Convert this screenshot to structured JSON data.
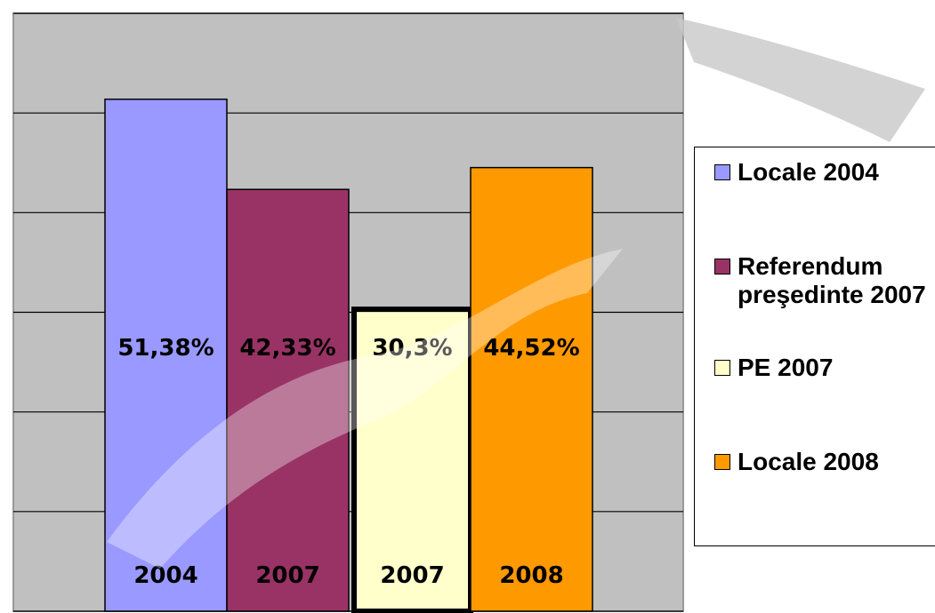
{
  "chart_data": {
    "type": "bar",
    "categories": [
      "2004",
      "2007",
      "2007",
      "2008"
    ],
    "values": [
      51.38,
      42.33,
      30.3,
      44.52
    ],
    "value_labels": [
      "51,38%",
      "42,33%",
      "30,3%",
      "44,52%"
    ],
    "colors": [
      "#9999ff",
      "#993366",
      "#ffffcc",
      "#ff9900"
    ],
    "legend": [
      "Locale 2004",
      "Referendum preşedinte 2007",
      "PE 2007",
      "Locale 2008"
    ],
    "ylim": [
      0,
      60
    ],
    "yticks": [
      0,
      10,
      20,
      30,
      40,
      50,
      60
    ],
    "grid": true
  }
}
